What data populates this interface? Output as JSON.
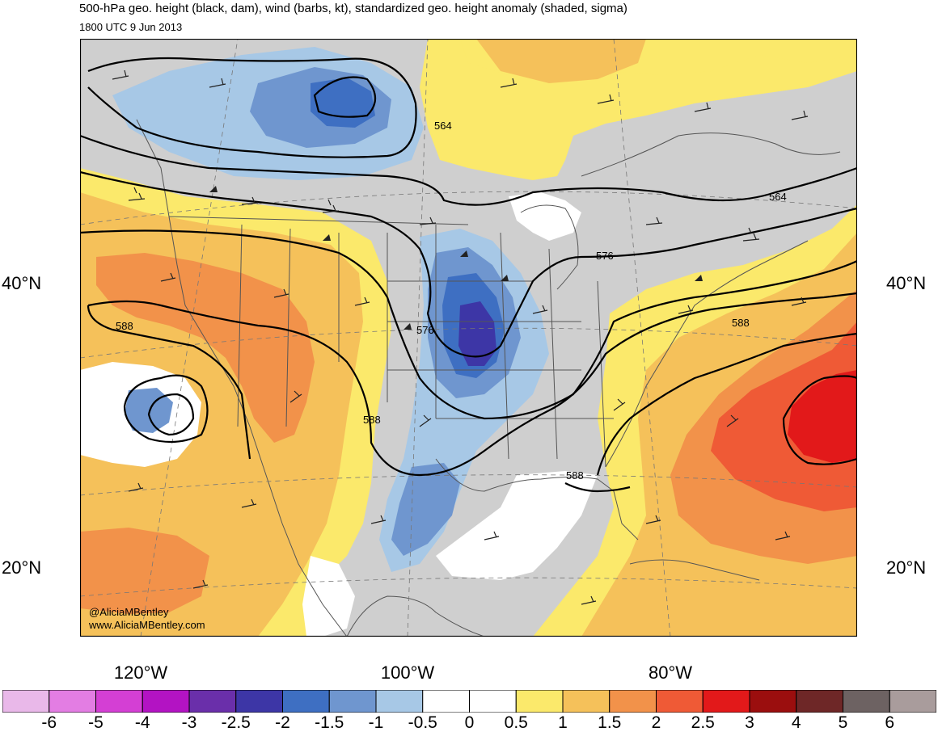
{
  "header": {
    "title": "500-hPa geo. height (black, dam), wind (barbs, kt), standardized geo. height anomaly (shaded, sigma)",
    "subtitle": "1800 UTC 9 Jun 2013"
  },
  "lat_labels": {
    "left_40": "40°N",
    "right_40": "40°N",
    "left_20": "20°N",
    "right_20": "20°N"
  },
  "lon_labels": {
    "lon120": "120°W",
    "lon100": "100°W",
    "lon80": "80°W"
  },
  "contour_labels": [
    "564",
    "564",
    "576",
    "576",
    "588",
    "588",
    "588",
    "588"
  ],
  "credits": {
    "handle": "@AliciaMBentley",
    "website": "www.AliciaMBentley.com"
  },
  "colorbar": {
    "colors": [
      "#e9b8e9",
      "#e37de3",
      "#d43fd4",
      "#b313c3",
      "#6a2faa",
      "#3d36a6",
      "#3e6fc2",
      "#6f96cf",
      "#a7c8e6",
      "#ffffff",
      "#ffffff",
      "#fbe96b",
      "#f5c15a",
      "#f2924a",
      "#ef5a36",
      "#e2191a",
      "#9b0e0e",
      "#6e2727",
      "#6d6262",
      "#a99c9c"
    ],
    "labels": [
      "-6",
      "-5",
      "-4",
      "-3",
      "-2.5",
      "-2",
      "-1.5",
      "-1",
      "-0.5",
      "0",
      "0.5",
      "1",
      "1.5",
      "2",
      "2.5",
      "3",
      "4",
      "5",
      "6"
    ]
  },
  "colors": {
    "gray_land": "#cfcfcf",
    "yellow": "#fbe96b",
    "light_orange": "#f5c15a",
    "orange": "#f2924a",
    "red_orange": "#ef5a36",
    "red": "#e2191a",
    "light_blue": "#a7c8e6",
    "mid_blue": "#6f96cf",
    "blue": "#3e6fc2",
    "dark_blue": "#3d36a6"
  }
}
